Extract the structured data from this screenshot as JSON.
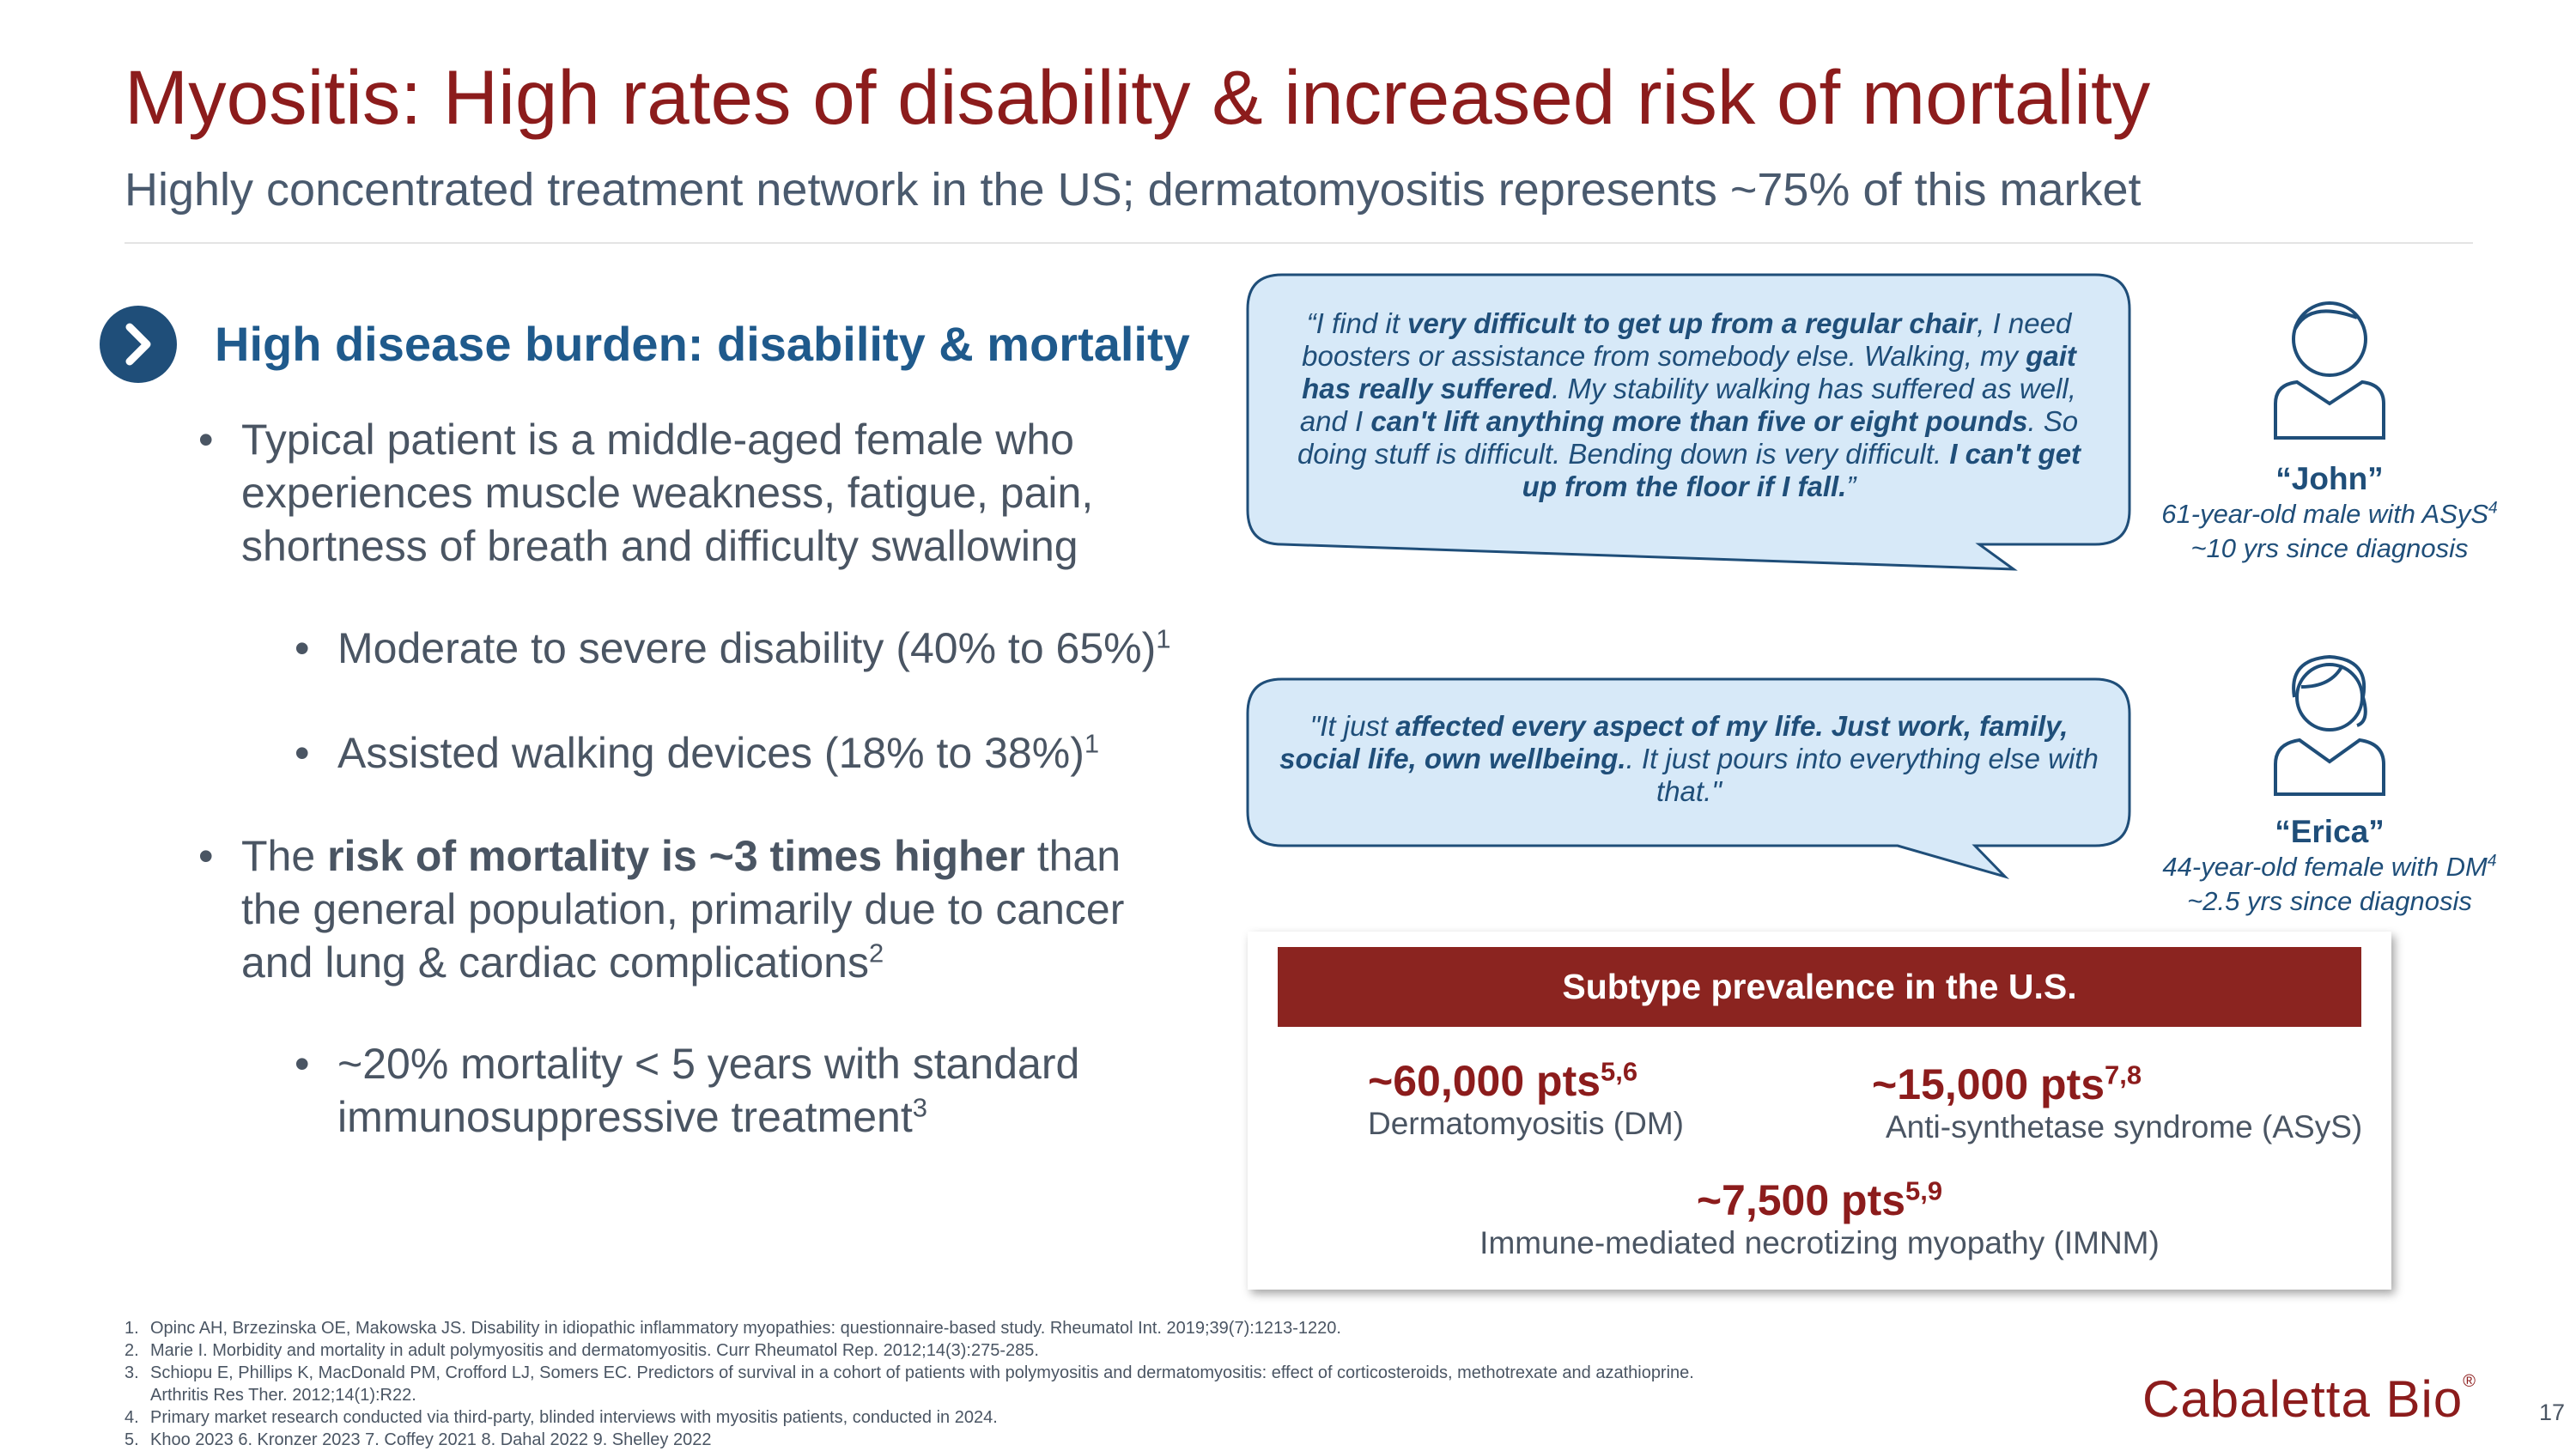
{
  "header": {
    "title": "Myositis: High rates of disability & increased risk of mortality",
    "subtitle": "Highly concentrated treatment network in the US; dermatomyositis represents ~75% of this market"
  },
  "section": {
    "heading": "High disease burden: disability & mortality",
    "bullets": [
      {
        "parts": [
          "Typical patient is a middle-aged female who experiences muscle weakness, fatigue, pain, shortness of breath and difficulty swallowing"
        ],
        "sup": null,
        "sub": [
          {
            "text": "Moderate to severe disability (40% to 65%)",
            "sup": "1"
          },
          {
            "text": "Assisted walking devices (18% to 38%)",
            "sup": "1"
          }
        ]
      },
      {
        "parts": [
          "The ",
          "risk of mortality is ~3 times higher",
          " than the general population, primarily due to cancer and lung & cardiac complications"
        ],
        "sup": "2",
        "sub": [
          {
            "text": "~20% mortality < 5 years with standard immunosuppressive treatment",
            "sup": "3"
          }
        ]
      }
    ]
  },
  "quotes": [
    {
      "parts": [
        "“I find it ",
        "very difficult to get up from a regular chair",
        ", I need boosters or assistance from somebody else. Walking, my ",
        "gait has really suffered",
        ". My stability walking has suffered as well, and I ",
        "can't lift anything more than five or eight pounds",
        ". So doing stuff is difficult. Bending down is very difficult. ",
        "I can't get up from the floor if I fall.",
        "”"
      ],
      "name": "“John”",
      "detail": "61-year-old male with ASyS",
      "detail_sup": "4",
      "since": "~10 yrs since diagnosis"
    },
    {
      "parts": [
        "\"It just ",
        "affected every aspect of my life. Just work, family, social life, own wellbeing.",
        ". It just pours into everything else with that.\""
      ],
      "name": "“Erica”",
      "detail": "44-year-old female with DM",
      "detail_sup": "4",
      "since": "~2.5 yrs since diagnosis"
    }
  ],
  "prevalence": {
    "title": "Subtype prevalence in the U.S.",
    "items": [
      {
        "value": "~60,000 pts",
        "sup": "5,6",
        "label": "Dermatomyositis (DM)"
      },
      {
        "value": "~15,000 pts",
        "sup": "7,8",
        "label": "Anti-synthetase syndrome (ASyS)"
      },
      {
        "value": "~7,500 pts",
        "sup": "5,9",
        "label": "Immune-mediated necrotizing myopathy (IMNM)"
      }
    ]
  },
  "footnotes": [
    {
      "num": "1.",
      "text": "Opinc AH, Brzezinska OE, Makowska JS. Disability in idiopathic inflammatory myopathies: questionnaire-based study. Rheumatol Int. 2019;39(7):1213-1220."
    },
    {
      "num": "2.",
      "text": "Marie I. Morbidity and mortality in adult polymyositis and dermatomyositis. Curr Rheumatol Rep. 2012;14(3):275-285."
    },
    {
      "num": "3.",
      "text": "Schiopu E, Phillips K, MacDonald PM, Crofford LJ, Somers EC. Predictors of survival in a cohort of patients with polymyositis and dermatomyositis: effect of corticosteroids, methotrexate and azathioprine. Arthritis Res Ther. 2012;14(1):R22."
    },
    {
      "num": "4.",
      "text": "Primary market research conducted via third-party, blinded interviews with myositis patients, conducted in 2024."
    },
    {
      "num": "5.",
      "text": "Khoo 2023 6. Kronzer 2023 7. Coffey 2021 8. Dahal 2022 9. Shelley 2022"
    }
  ],
  "footer": {
    "logo": "Cabaletta Bio",
    "logo_mark": "®",
    "page": "17"
  }
}
